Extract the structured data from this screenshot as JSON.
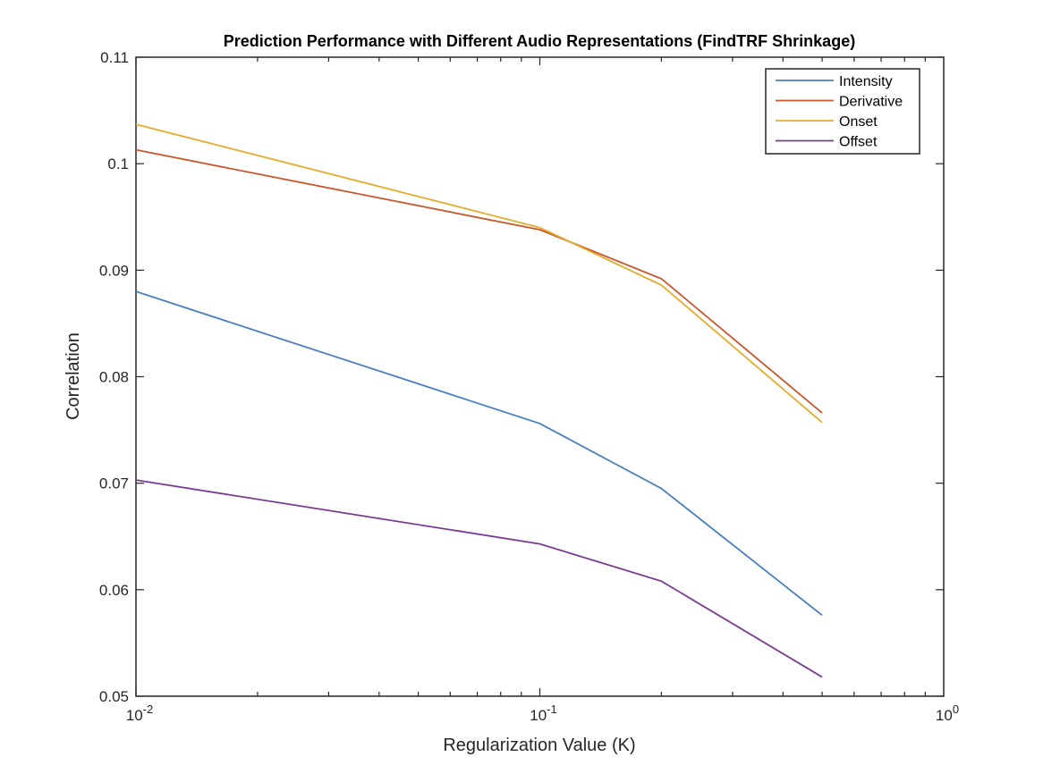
{
  "chart_data": {
    "type": "line",
    "title": "Prediction Performance with Different Audio Representations (FindTRF Shrinkage)",
    "xlabel": "Regularization Value (K)",
    "ylabel": "Correlation",
    "xscale": "log",
    "xlim": [
      0.01,
      1
    ],
    "ylim": [
      0.05,
      0.11
    ],
    "x_tick_labels": [
      {
        "base": "10",
        "exp": "-2"
      },
      {
        "base": "10",
        "exp": "-1"
      },
      {
        "base": "10",
        "exp": "0"
      }
    ],
    "y_ticks": [
      "0.05",
      "0.06",
      "0.07",
      "0.08",
      "0.09",
      "0.1",
      "0.11"
    ],
    "grid": false,
    "legend_position": "top-right",
    "x": [
      0.01,
      0.1,
      0.2,
      0.5
    ],
    "series": [
      {
        "name": "Intensity",
        "color": "#4a7fc1",
        "values": [
          0.088,
          0.0756,
          0.0695,
          0.0576
        ]
      },
      {
        "name": "Derivative",
        "color": "#c9562a",
        "values": [
          0.1013,
          0.0938,
          0.0892,
          0.0766
        ]
      },
      {
        "name": "Onset",
        "color": "#e3ac2c",
        "values": [
          0.1037,
          0.094,
          0.0886,
          0.0757
        ]
      },
      {
        "name": "Offset",
        "color": "#7a3a92",
        "values": [
          0.0703,
          0.0643,
          0.0608,
          0.0518
        ]
      }
    ]
  }
}
